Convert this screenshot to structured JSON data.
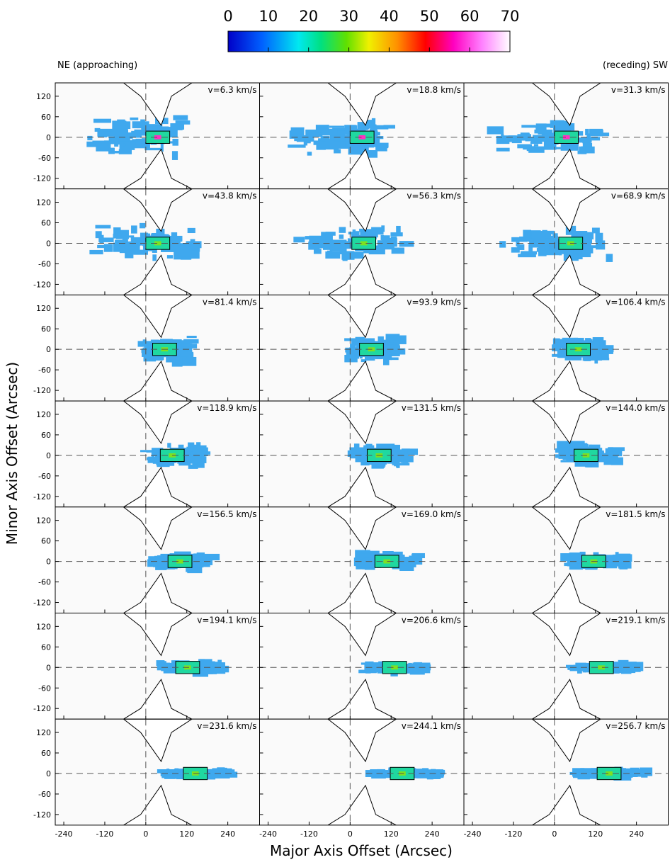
{
  "chart_data": {
    "type": "channel_maps",
    "colorbar": {
      "lim": [
        0,
        70
      ],
      "ticks": [
        0,
        10,
        20,
        30,
        40,
        50,
        60,
        70
      ]
    },
    "left_note": "NE (approaching)",
    "right_note": "(receding) SW",
    "xlabel": "Major Axis Offset (Arcsec)",
    "ylabel": "Minor Axis Offset (Arcsec)",
    "xlim": [
      -265,
      333
    ],
    "ylim": [
      -151,
      159
    ],
    "xticks": [
      -240,
      -120,
      0,
      120,
      240
    ],
    "yticks": [
      120,
      60,
      0,
      -60,
      -120
    ],
    "panels": [
      {
        "label": "v=6.3 km/s"
      },
      {
        "label": "v=18.8 km/s"
      },
      {
        "label": "v=31.3 km/s"
      },
      {
        "label": "v=43.8 km/s"
      },
      {
        "label": "v=56.3 km/s"
      },
      {
        "label": "v=68.9 km/s"
      },
      {
        "label": "v=81.4 km/s"
      },
      {
        "label": "v=93.9 km/s"
      },
      {
        "label": "v=106.4 km/s"
      },
      {
        "label": "v=118.9 km/s"
      },
      {
        "label": "v=131.5 km/s"
      },
      {
        "label": "v=144.0 km/s"
      },
      {
        "label": "v=156.5 km/s"
      },
      {
        "label": "v=169.0 km/s"
      },
      {
        "label": "v=181.5 km/s"
      },
      {
        "label": "v=194.1 km/s"
      },
      {
        "label": "v=206.6 km/s"
      },
      {
        "label": "v=219.1 km/s"
      },
      {
        "label": "v=231.6 km/s"
      },
      {
        "label": "v=244.1 km/s"
      },
      {
        "label": "v=256.7 km/s"
      }
    ]
  }
}
